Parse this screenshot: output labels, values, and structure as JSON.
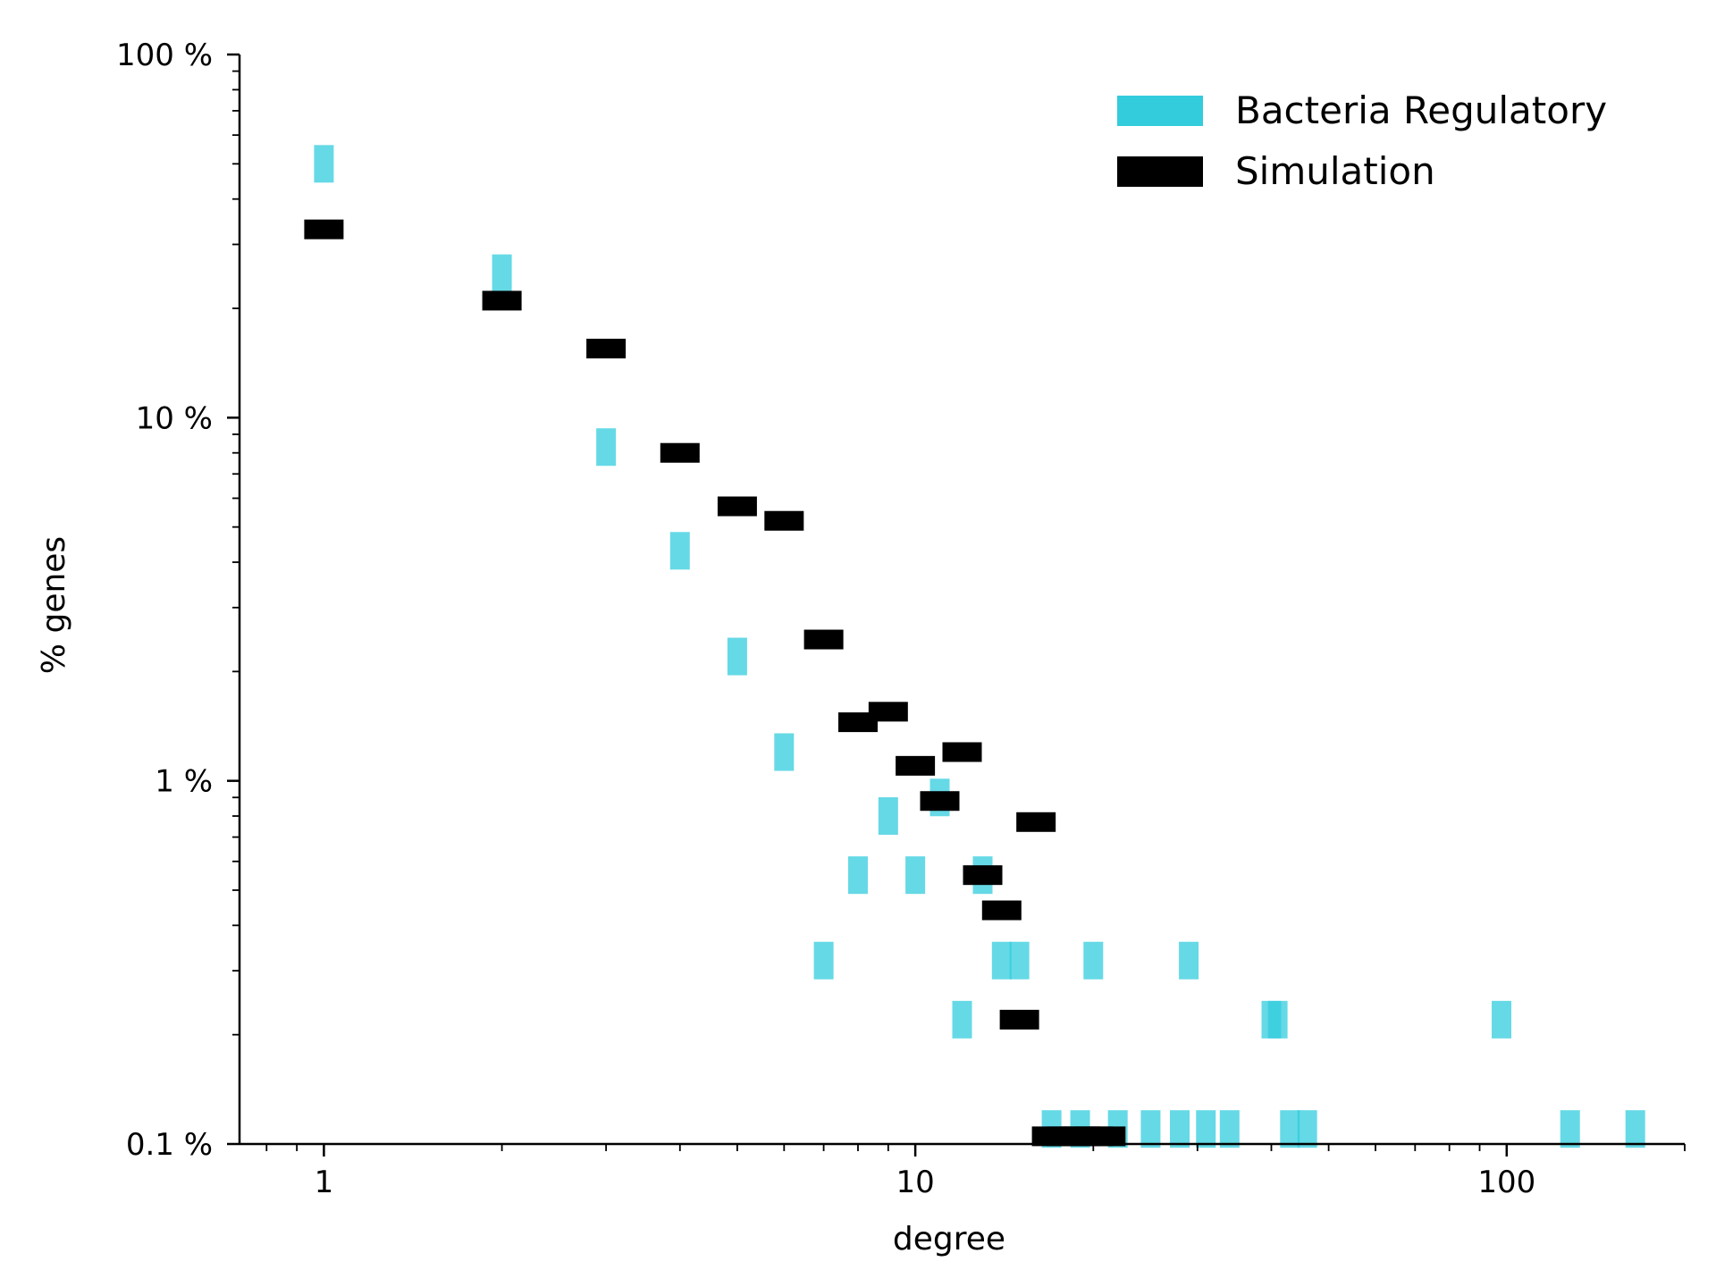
{
  "chart_data": {
    "type": "scatter",
    "title": "",
    "xlabel": "degree",
    "ylabel": "% genes",
    "xscale": "log",
    "yscale": "log",
    "xlim": [
      0.72,
      200
    ],
    "ylim": [
      0.1,
      100
    ],
    "x_ticks": [
      {
        "value": 1,
        "label": "1"
      },
      {
        "value": 10,
        "label": "10"
      },
      {
        "value": 100,
        "label": "100"
      }
    ],
    "y_ticks": [
      {
        "value": 0.1,
        "label": "0.1 %"
      },
      {
        "value": 1,
        "label": "1 %"
      },
      {
        "value": 10,
        "label": "10 %"
      },
      {
        "value": 100,
        "label": "100 %"
      }
    ],
    "grid": false,
    "legend": {
      "position": "top-right"
    },
    "series": [
      {
        "name": "Bacteria Regulatory",
        "color": "#33ccdd",
        "marker": "vertical-bar",
        "points": [
          {
            "x": 1,
            "y": 50
          },
          {
            "x": 2,
            "y": 25
          },
          {
            "x": 3,
            "y": 8.3
          },
          {
            "x": 4,
            "y": 4.3
          },
          {
            "x": 5,
            "y": 2.2
          },
          {
            "x": 6,
            "y": 1.2
          },
          {
            "x": 7,
            "y": 0.32
          },
          {
            "x": 8,
            "y": 0.55
          },
          {
            "x": 9,
            "y": 0.8
          },
          {
            "x": 10,
            "y": 0.55
          },
          {
            "x": 11,
            "y": 0.9
          },
          {
            "x": 12,
            "y": 0.22
          },
          {
            "x": 13,
            "y": 0.55
          },
          {
            "x": 14,
            "y": 0.32
          },
          {
            "x": 15,
            "y": 0.32
          },
          {
            "x": 17,
            "y": 0.11
          },
          {
            "x": 19,
            "y": 0.11
          },
          {
            "x": 20,
            "y": 0.32
          },
          {
            "x": 22,
            "y": 0.11
          },
          {
            "x": 25,
            "y": 0.11
          },
          {
            "x": 28,
            "y": 0.11
          },
          {
            "x": 29,
            "y": 0.32
          },
          {
            "x": 31,
            "y": 0.11
          },
          {
            "x": 34,
            "y": 0.11
          },
          {
            "x": 40,
            "y": 0.22
          },
          {
            "x": 41,
            "y": 0.22
          },
          {
            "x": 43,
            "y": 0.11
          },
          {
            "x": 46,
            "y": 0.11
          },
          {
            "x": 98,
            "y": 0.22
          },
          {
            "x": 128,
            "y": 0.11
          },
          {
            "x": 165,
            "y": 0.11
          }
        ]
      },
      {
        "name": "Simulation",
        "color": "#000000",
        "marker": "horizontal-bar",
        "points": [
          {
            "x": 1,
            "y": 33
          },
          {
            "x": 2,
            "y": 21
          },
          {
            "x": 3,
            "y": 15.5
          },
          {
            "x": 4,
            "y": 8.0
          },
          {
            "x": 5,
            "y": 5.7
          },
          {
            "x": 6,
            "y": 5.2
          },
          {
            "x": 7,
            "y": 2.45
          },
          {
            "x": 8,
            "y": 1.45
          },
          {
            "x": 9,
            "y": 1.55
          },
          {
            "x": 10,
            "y": 1.1
          },
          {
            "x": 11,
            "y": 0.88
          },
          {
            "x": 12,
            "y": 1.2
          },
          {
            "x": 13,
            "y": 0.55
          },
          {
            "x": 14,
            "y": 0.44
          },
          {
            "x": 15,
            "y": 0.22
          },
          {
            "x": 16,
            "y": 0.77
          },
          {
            "x": 17,
            "y": 0.105
          },
          {
            "x": 18,
            "y": 0.105
          },
          {
            "x": 19,
            "y": 0.105
          },
          {
            "x": 20,
            "y": 0.105
          },
          {
            "x": 21,
            "y": 0.105
          }
        ]
      }
    ]
  }
}
